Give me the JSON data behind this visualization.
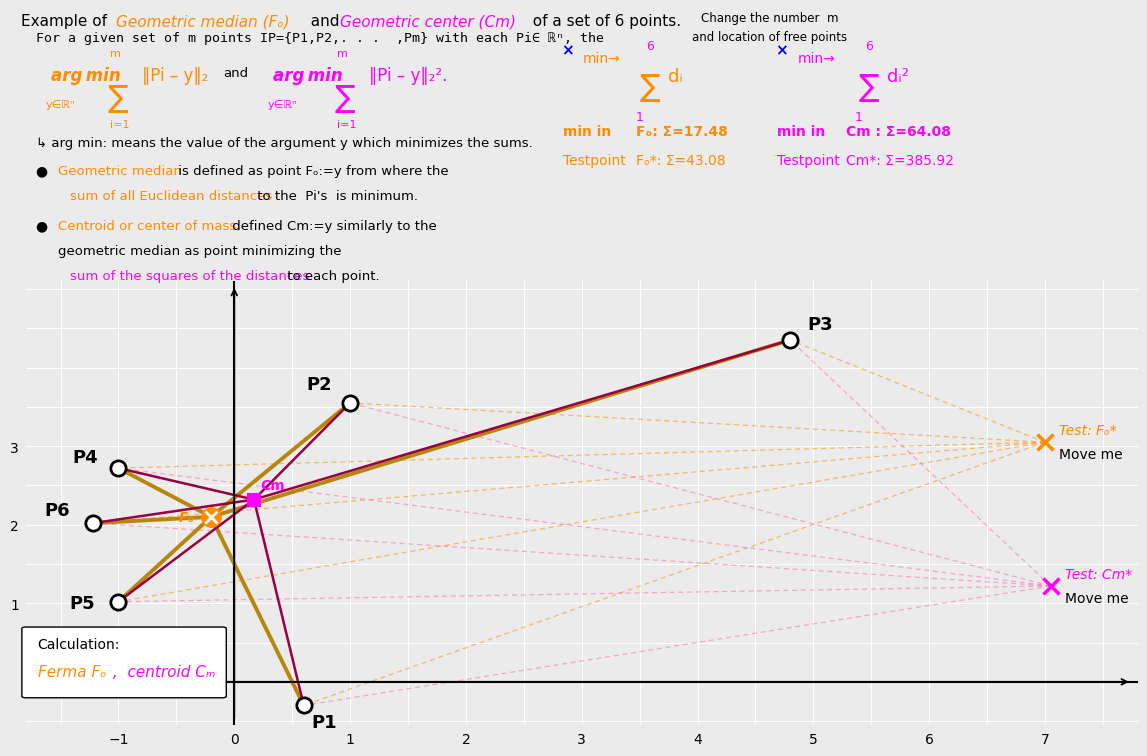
{
  "points": {
    "P1": [
      0.6,
      -0.3
    ],
    "P2": [
      1.0,
      3.55
    ],
    "P3": [
      4.8,
      4.35
    ],
    "P4": [
      -1.0,
      2.72
    ],
    "P5": [
      -1.0,
      1.02
    ],
    "P6": [
      -1.22,
      2.02
    ]
  },
  "Fo": [
    -0.2,
    2.1
  ],
  "Cm": [
    0.17,
    2.32
  ],
  "test_Fo": [
    7.0,
    3.05
  ],
  "test_Cm": [
    7.05,
    1.22
  ],
  "xlim": [
    -1.8,
    7.8
  ],
  "ylim": [
    -0.55,
    5.1
  ],
  "xticks": [
    -1,
    0,
    1,
    2,
    3,
    4,
    5,
    6,
    7
  ],
  "yticks": [
    1,
    2,
    3
  ],
  "orange": "#FF8C00",
  "magenta": "#FF00FF",
  "gold": "#B8860B",
  "crimson": "#990044",
  "pink_dashed": "#FF69B4",
  "bg_color": "#ebebeb",
  "plot_bg": "#e8e8e8"
}
